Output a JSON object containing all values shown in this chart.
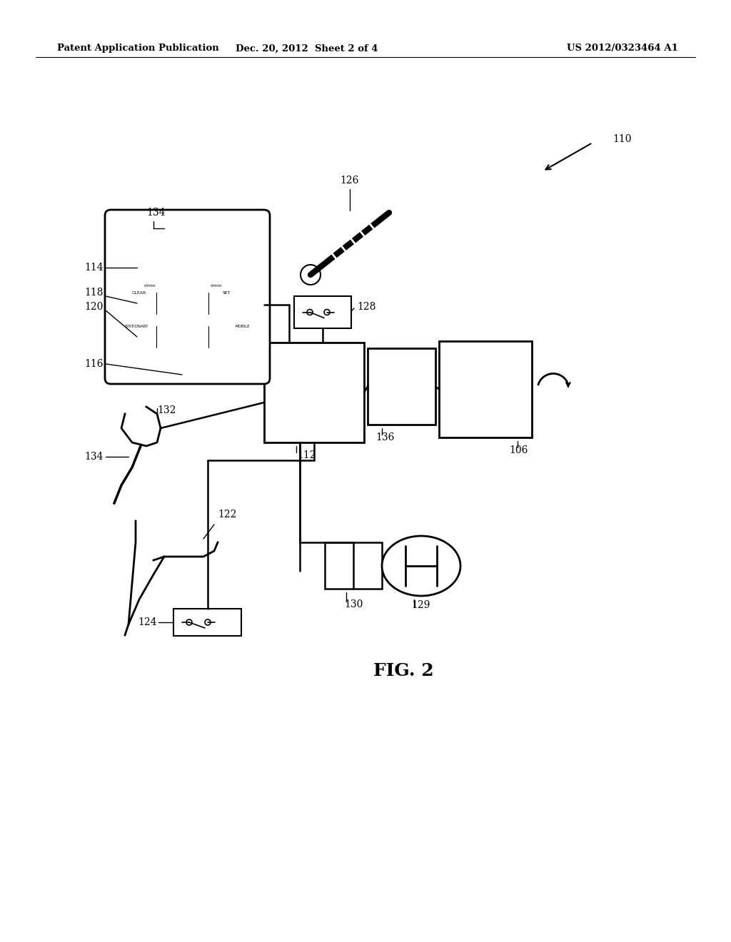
{
  "header_left": "Patent Application Publication",
  "header_mid": "Dec. 20, 2012  Sheet 2 of 4",
  "header_right": "US 2012/0323464 A1",
  "fig_label": "FIG. 2",
  "background": "#ffffff",
  "line_color": "#000000"
}
